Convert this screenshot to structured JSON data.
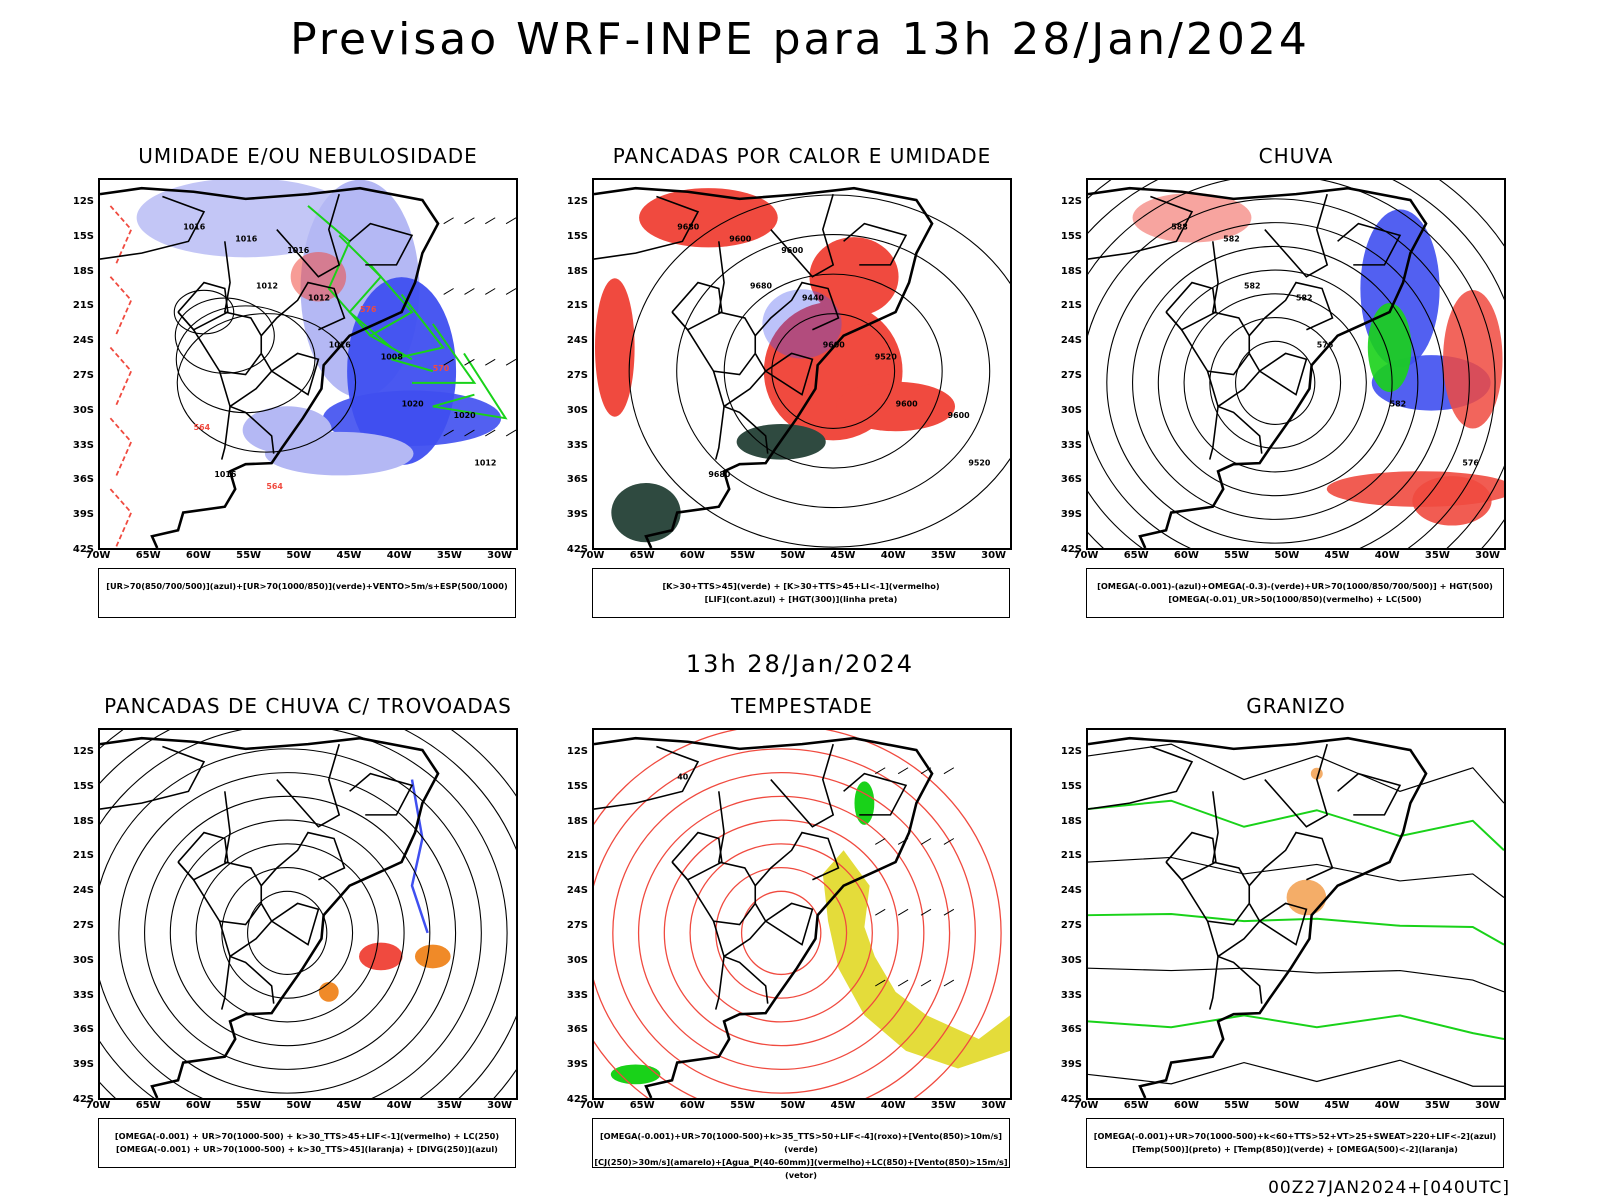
{
  "title": "Previsao WRF-INPE  para 13h 28/Jan/2024",
  "mid_title": "13h 28/Jan/2024",
  "footer": "00Z27JAN2024+[040UTC]",
  "lat_labels": [
    "12S",
    "15S",
    "18S",
    "21S",
    "24S",
    "27S",
    "30S",
    "33S",
    "36S",
    "39S",
    "42S"
  ],
  "lon_labels": [
    "70W",
    "65W",
    "60W",
    "55W",
    "50W",
    "45W",
    "40W",
    "35W",
    "30W"
  ],
  "panels": [
    {
      "title": "UMIDADE E/OU NEBULOSIDADE",
      "legend": [
        "[UR>70(850/700/500)](azul)+[UR>70(1000/850)](verde)+VENTO>5m/s+ESP(500/1000)"
      ],
      "contours": [
        "1016",
        "1012",
        "1016",
        "1020",
        "1012",
        "1016",
        "1012",
        "1008",
        "1020",
        "1016",
        "1016",
        "576",
        "570",
        "564",
        "564"
      ]
    },
    {
      "title": "PANCADAS POR CALOR E UMIDADE",
      "legend": [
        "[K>30+TTS>45](verde) + [K>30+TTS>45+LI<-1](vermelho)",
        "[LIF](cont.azul) + [HGT(300)](linha preta)"
      ],
      "contours": [
        "9680",
        "9680",
        "9600",
        "9600",
        "9520",
        "9600",
        "9440",
        "9520",
        "9600",
        "9680",
        "9600"
      ]
    },
    {
      "title": "CHUVA",
      "legend": [
        "[OMEGA(-0.001)-(azul)+OMEGA(-0.3)-(verde)+UR>70(1000/850/700/500)] + HGT(500)",
        "[OMEGA(-0.01)_UR>50(1000/850)(vermelho) + LC(500)"
      ],
      "contours": [
        "588",
        "582",
        "576",
        "582",
        "576",
        "582",
        "582"
      ]
    },
    {
      "title": "PANCADAS DE CHUVA C/ TROVOADAS",
      "legend": [
        "[OMEGA(-0.001) + UR>70(1000-500) + k>30_TTS>45+LIF<-1](vermelho) + LC(250)",
        "[OMEGA(-0.001) + UR>70(1000-500) + k>30_TTS>45](laranja) + [DIVG(250)](azul)"
      ],
      "contours": []
    },
    {
      "title": "TEMPESTADE",
      "legend": [
        "[OMEGA(-0.001)+UR>70(1000-500)+k>35_TTS>50+LIF<-4](roxo)+[Vento(850)>10m/s](verde)",
        "[CJ(250)>30m/s](amarelo)+[Agua_P(40-60mm)](vermelho)+LC(850)+[Vento(850)>15m/s](vetor)"
      ],
      "contours": [
        "40"
      ]
    },
    {
      "title": "GRANIZO",
      "legend": [
        "[OMEGA(-0.001)+UR>70(1000-500)+k<60+TTS>52+VT>25+SWEAT>220+LIF<-2](azul)",
        "[Temp(500)](preto) + [Temp(850)](verde) + [OMEGA(500)<-2](laranja)"
      ],
      "contours": []
    }
  ],
  "colors": {
    "blue": "#3f4ff0",
    "light_blue": "#b4b8f4",
    "green": "#19d219",
    "red": "#f04a3f",
    "dark_green": "#2f4a40",
    "yellow": "#e4dc3a",
    "orange": "#f08a28",
    "purple": "#a02890"
  }
}
